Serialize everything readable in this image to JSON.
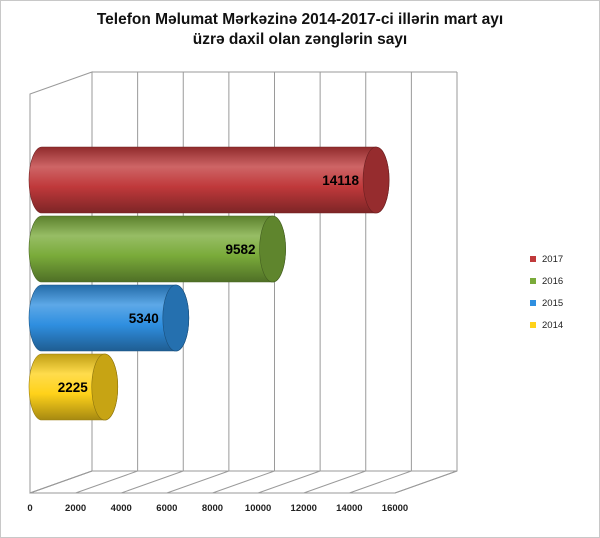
{
  "chart_data": {
    "type": "bar",
    "orientation": "horizontal",
    "style": "3d-cylinder",
    "title_lines": [
      "Telefon Məlumat Mərkəzinə 2014-2017-ci illərin mart ayı",
      "üzrə daxil olan zənglərin sayı"
    ],
    "series": [
      {
        "name": "2017",
        "value": 14118,
        "color": "#c0393b"
      },
      {
        "name": "2016",
        "value": 9582,
        "color": "#7aab3a"
      },
      {
        "name": "2015",
        "value": 5340,
        "color": "#2f8fe0"
      },
      {
        "name": "2014",
        "value": 2225,
        "color": "#ffd21a"
      }
    ],
    "xlim": [
      0,
      16000
    ],
    "x_ticks": [
      "0",
      "2000",
      "4000",
      "6000",
      "8000",
      "10000",
      "12000",
      "14000",
      "16000"
    ],
    "grid": true,
    "legend_position": "right",
    "data_labels": true
  }
}
